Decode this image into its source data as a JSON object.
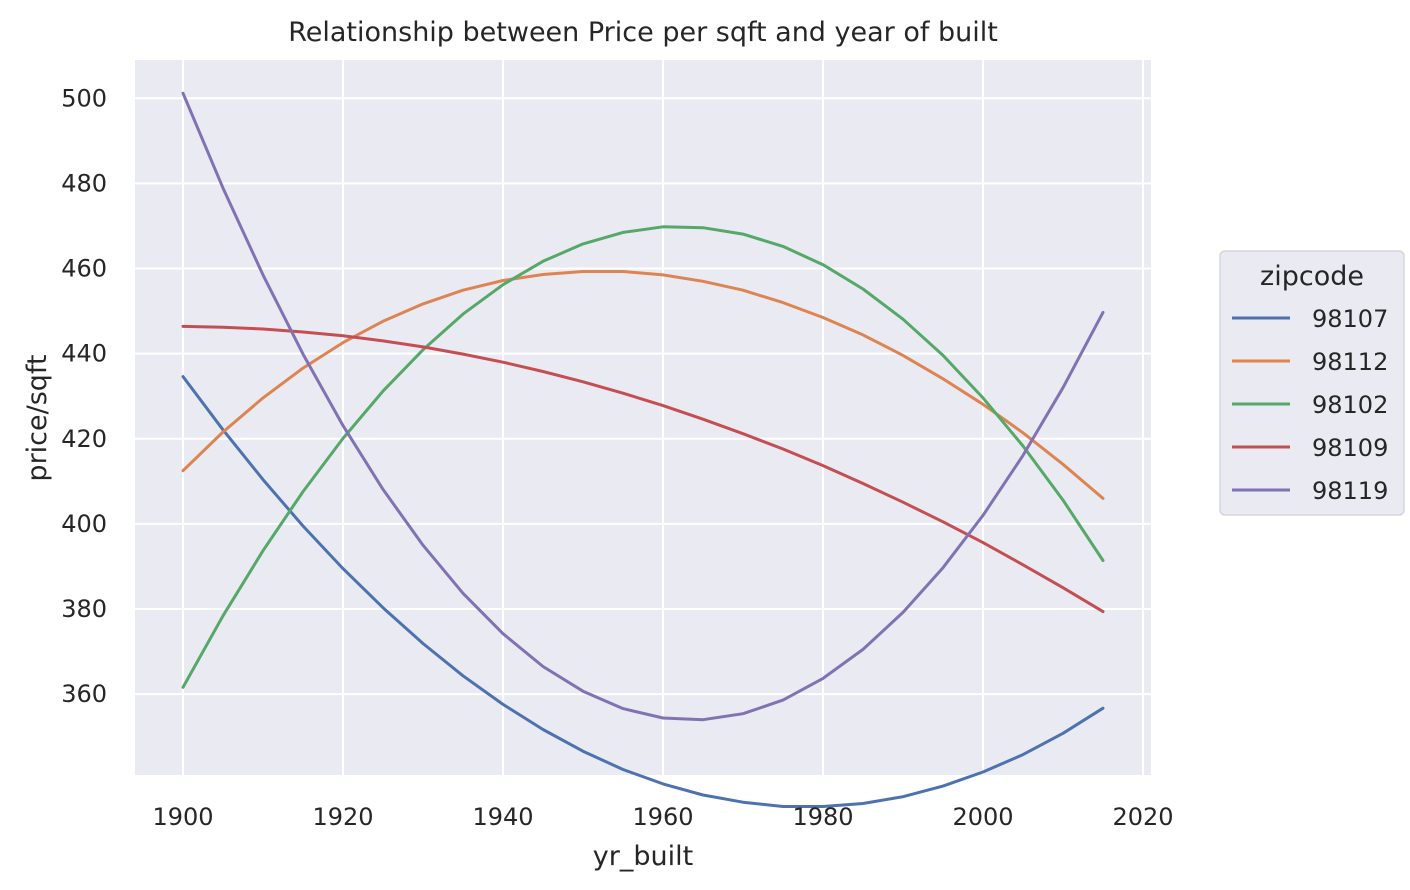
{
  "chart_data": {
    "type": "line",
    "title": "Relationship between Price per sqft and year of built",
    "xlabel": "yr_built",
    "ylabel": "price/sqft",
    "xlim": [
      1894,
      2021
    ],
    "ylim": [
      341,
      509
    ],
    "xticks": [
      1900,
      1920,
      1940,
      1960,
      1980,
      2000,
      2020
    ],
    "yticks": [
      360,
      380,
      400,
      420,
      440,
      460,
      480,
      500
    ],
    "grid": true,
    "legend": {
      "title": "zipcode",
      "placement": "right"
    },
    "x": [
      1900,
      1905,
      1910,
      1915,
      1920,
      1925,
      1930,
      1935,
      1940,
      1945,
      1950,
      1955,
      1960,
      1965,
      1970,
      1975,
      1980,
      1985,
      1990,
      1995,
      2000,
      2005,
      2010,
      2015
    ],
    "series": [
      {
        "name": "98107",
        "color": "#4c72b0",
        "values": [
          434.6,
          422.1,
          410.4,
          399.5,
          389.5,
          380.3,
          371.9,
          364.3,
          357.6,
          351.7,
          346.6,
          342.3,
          338.9,
          336.3,
          334.6,
          333.6,
          333.6,
          334.3,
          335.9,
          338.4,
          341.7,
          345.8,
          350.8,
          356.7
        ]
      },
      {
        "name": "98112",
        "color": "#dd8452",
        "values": [
          412.5,
          421.6,
          429.6,
          436.6,
          442.6,
          447.6,
          451.7,
          454.9,
          457.2,
          458.6,
          459.3,
          459.3,
          458.5,
          457.0,
          454.9,
          452.0,
          448.5,
          444.4,
          439.6,
          434.1,
          428.1,
          421.4,
          414.0,
          406.0
        ]
      },
      {
        "name": "98102",
        "color": "#55a868",
        "values": [
          361.6,
          378.4,
          393.7,
          407.6,
          420.1,
          431.2,
          440.9,
          449.3,
          456.2,
          461.7,
          465.8,
          468.5,
          469.8,
          469.6,
          468.1,
          465.2,
          460.9,
          455.2,
          448.1,
          439.6,
          429.6,
          418.3,
          405.6,
          391.4
        ]
      },
      {
        "name": "98109",
        "color": "#c44e52",
        "values": [
          446.4,
          446.2,
          445.8,
          445.1,
          444.2,
          443.0,
          441.6,
          439.9,
          438.0,
          435.8,
          433.4,
          430.7,
          427.8,
          424.6,
          421.2,
          417.6,
          413.7,
          409.5,
          405.1,
          400.5,
          395.6,
          390.4,
          385.0,
          379.4
        ]
      },
      {
        "name": "98119",
        "color": "#8172b3",
        "values": [
          501.2,
          478.9,
          458.5,
          439.9,
          423.1,
          408.1,
          395.0,
          383.7,
          374.2,
          366.5,
          360.7,
          356.6,
          354.4,
          354.0,
          355.4,
          358.6,
          363.7,
          370.5,
          379.2,
          389.7,
          402.0,
          416.1,
          432.0,
          449.7
        ]
      }
    ]
  }
}
